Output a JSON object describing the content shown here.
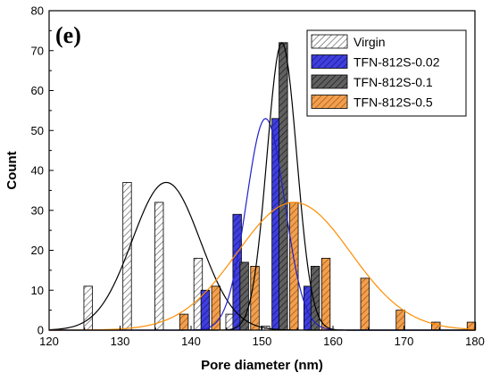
{
  "chart_data": {
    "type": "bar",
    "panel_label": "(e)",
    "xlabel": "Pore diameter (nm)",
    "ylabel": "Count",
    "xlim": [
      120,
      180
    ],
    "ylim": [
      0,
      80
    ],
    "x_ticks": [
      120,
      130,
      140,
      150,
      160,
      170,
      180
    ],
    "y_ticks": [
      0,
      10,
      20,
      30,
      40,
      50,
      60,
      70,
      80
    ],
    "bar_width": 1.2,
    "legend_position": "top-right",
    "grid": false,
    "series": [
      {
        "name": "Virgin",
        "color": "#ffffff",
        "hatch": "#777777",
        "curve_color": "#000000",
        "x": [
          125.5,
          131,
          135.5,
          141,
          145.5,
          150.5
        ],
        "values": [
          11,
          37,
          32,
          18,
          4,
          1
        ],
        "fit": {
          "mean": 136.5,
          "sigma": 4.8,
          "peak": 37
        }
      },
      {
        "name": "TFN-812S-0.02",
        "color": "#3f3fe0",
        "hatch": "#1a1a80",
        "curve_color": "#2222cc",
        "x": [
          142,
          146.5,
          152,
          156.5
        ],
        "values": [
          10,
          29,
          53,
          11
        ],
        "fit": {
          "mean": 150.5,
          "sigma": 2.7,
          "peak": 53
        }
      },
      {
        "name": "TFN-812S-0.1",
        "color": "#606060",
        "hatch": "#222222",
        "curve_color": "#000000",
        "x": [
          147.5,
          153,
          157.5
        ],
        "values": [
          17,
          72,
          16
        ],
        "fit": {
          "mean": 152.8,
          "sigma": 2.1,
          "peak": 72
        }
      },
      {
        "name": "TFN-812S-0.5",
        "color": "#f0a050",
        "hatch": "#b05a10",
        "curve_color": "#ff8c00",
        "x": [
          139,
          143.5,
          149,
          154.5,
          159,
          164.5,
          169.5,
          174.5,
          179.5
        ],
        "values": [
          4,
          11,
          16,
          32,
          18,
          13,
          5,
          2,
          2
        ],
        "fit": {
          "mean": 154.5,
          "sigma": 8.0,
          "peak": 32
        }
      }
    ]
  }
}
